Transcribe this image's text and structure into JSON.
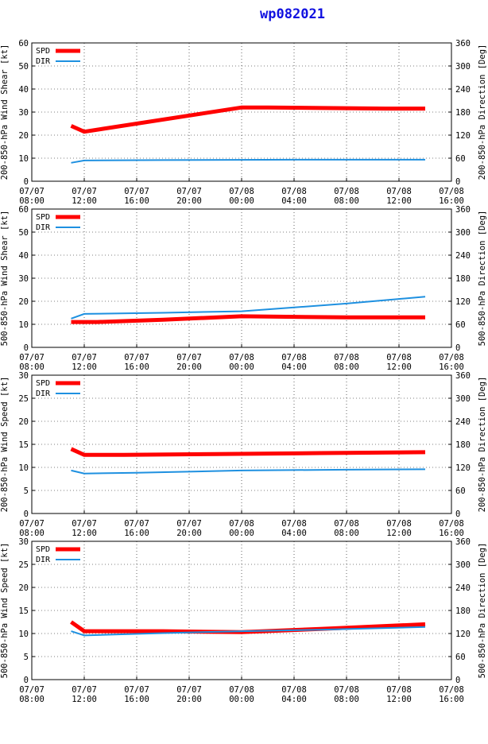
{
  "title": "wp082021",
  "x_tick_labels": [
    [
      "07/07",
      "08:00"
    ],
    [
      "07/07",
      "12:00"
    ],
    [
      "07/07",
      "16:00"
    ],
    [
      "07/07",
      "20:00"
    ],
    [
      "07/08",
      "00:00"
    ],
    [
      "07/08",
      "04:00"
    ],
    [
      "07/08",
      "08:00"
    ],
    [
      "07/08",
      "12:00"
    ],
    [
      "07/08",
      "16:00"
    ]
  ],
  "chart_data": [
    {
      "type": "line",
      "ylabel": "200-850-hPa Wind Shear [kt]",
      "y2label": "200-850-hPa Direction [Deg]",
      "ylim": [
        0,
        60
      ],
      "yticks": [
        0,
        10,
        20,
        30,
        40,
        50,
        60
      ],
      "y2lim": [
        0,
        360
      ],
      "y2ticks": [
        0,
        60,
        120,
        180,
        240,
        300,
        360
      ],
      "xlim": [
        0,
        32
      ],
      "legend": "top-left",
      "grid": "dashed",
      "series": [
        {
          "name": "SPD",
          "color": "#ff0000",
          "axis": "left",
          "x": [
            3,
            4,
            16,
            18,
            27,
            30
          ],
          "y": [
            24,
            21.5,
            32,
            32,
            31.5,
            31.5
          ]
        },
        {
          "name": "DIR",
          "color": "#1e90e0",
          "axis": "right",
          "x": [
            3,
            4,
            10,
            20,
            30
          ],
          "y": [
            48,
            54,
            55,
            56,
            56
          ]
        }
      ]
    },
    {
      "type": "line",
      "ylabel": "500-850-hPa Wind Shear [kt]",
      "y2label": "500-850-hPa Direction [Deg]",
      "ylim": [
        0,
        60
      ],
      "yticks": [
        0,
        10,
        20,
        30,
        40,
        50,
        60
      ],
      "y2lim": [
        0,
        360
      ],
      "y2ticks": [
        0,
        60,
        120,
        180,
        240,
        300,
        360
      ],
      "xlim": [
        0,
        32
      ],
      "legend": "top-left",
      "grid": "dashed",
      "series": [
        {
          "name": "SPD",
          "color": "#ff0000",
          "axis": "left",
          "x": [
            3,
            5,
            10,
            16,
            24,
            30
          ],
          "y": [
            11,
            11,
            12,
            13.5,
            13,
            13
          ]
        },
        {
          "name": "DIR",
          "color": "#1e90e0",
          "axis": "right",
          "x": [
            3,
            4,
            10,
            16,
            24,
            30
          ],
          "y": [
            75,
            87,
            90,
            94,
            114,
            132
          ]
        }
      ]
    },
    {
      "type": "line",
      "ylabel": "200-850-hPa Wind Speed [kt]",
      "y2label": "200-850-hPa Direction [Deg]",
      "ylim": [
        0,
        30
      ],
      "yticks": [
        0,
        5,
        10,
        15,
        20,
        25,
        30
      ],
      "y2lim": [
        0,
        360
      ],
      "y2ticks": [
        0,
        60,
        120,
        180,
        240,
        300,
        360
      ],
      "xlim": [
        0,
        32
      ],
      "legend": "top-left",
      "grid": "dashed",
      "series": [
        {
          "name": "SPD",
          "color": "#ff0000",
          "axis": "left",
          "x": [
            3,
            4,
            7,
            14,
            22,
            30
          ],
          "y": [
            14,
            12.7,
            12.7,
            12.9,
            13.1,
            13.3
          ]
        },
        {
          "name": "DIR",
          "color": "#1e90e0",
          "axis": "right",
          "x": [
            3,
            4,
            8,
            16,
            24,
            30
          ],
          "y": [
            112,
            104,
            106,
            112,
            114,
            115
          ]
        }
      ]
    },
    {
      "type": "line",
      "ylabel": "500-850-hPa Wind Speed [kt]",
      "y2label": "500-850-hPa Direction [Deg]",
      "ylim": [
        0,
        30
      ],
      "yticks": [
        0,
        5,
        10,
        15,
        20,
        25,
        30
      ],
      "y2lim": [
        0,
        360
      ],
      "y2ticks": [
        0,
        60,
        120,
        180,
        240,
        300,
        360
      ],
      "xlim": [
        0,
        32
      ],
      "legend": "top-left",
      "grid": "dashed",
      "series": [
        {
          "name": "SPD",
          "color": "#ff0000",
          "axis": "left",
          "x": [
            3,
            4,
            10,
            16,
            22,
            30
          ],
          "y": [
            12.5,
            10.5,
            10.5,
            10.3,
            11,
            12
          ]
        },
        {
          "name": "DIR",
          "color": "#1e90e0",
          "axis": "right",
          "x": [
            3,
            4,
            10,
            16,
            22,
            30
          ],
          "y": [
            126,
            115,
            121,
            126,
            130,
            137
          ]
        }
      ]
    }
  ]
}
